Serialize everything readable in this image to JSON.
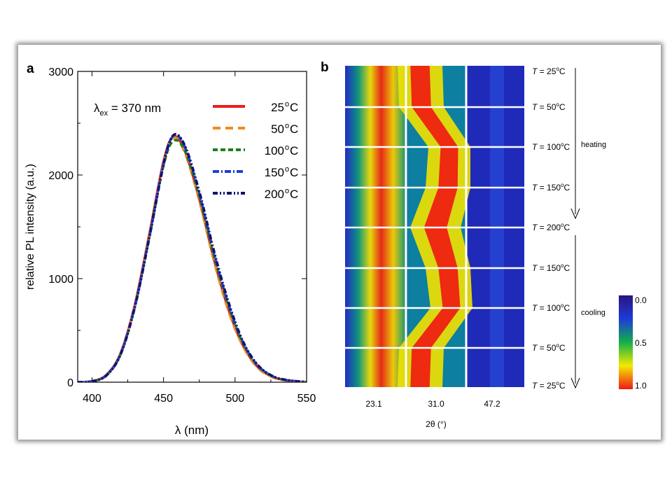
{
  "panel_a": {
    "label": "a",
    "annotation": {
      "symbol": "λ",
      "subscript": "ex",
      "rest": " = 370 nm"
    },
    "ylabel": "relative PL intensity (a.u.)",
    "xlabel": "λ (nm)",
    "x_ticks": [
      "400",
      "450",
      "500",
      "550"
    ],
    "y_ticks": [
      "0",
      "1000",
      "2000",
      "3000"
    ],
    "legend": [
      {
        "label": "25",
        "unit": "C",
        "color": "#e8211e"
      },
      {
        "label": "50",
        "unit": "C",
        "color": "#f28a22"
      },
      {
        "label": "100",
        "unit": "C",
        "color": "#1a7f1a"
      },
      {
        "label": "150",
        "unit": "C",
        "color": "#1e3fd6"
      },
      {
        "label": "200",
        "unit": "C",
        "color": "#10156b"
      }
    ]
  },
  "panel_b": {
    "label": "b",
    "x_ticks": [
      "23.1",
      "31.0",
      "47.2"
    ],
    "xlabel": "2θ (°)",
    "temperature_rows": [
      {
        "t": "T =",
        "value": "25",
        "unit": "C"
      },
      {
        "t": "T =",
        "value": "50",
        "unit": "C"
      },
      {
        "t": "T =",
        "value": "100",
        "unit": "C"
      },
      {
        "t": "T =",
        "value": "150",
        "unit": "C"
      },
      {
        "t": "T =",
        "value": "200",
        "unit": "C"
      },
      {
        "t": "T =",
        "value": "150",
        "unit": "C"
      },
      {
        "t": "T =",
        "value": "100",
        "unit": "C"
      },
      {
        "t": "T =",
        "value": "50",
        "unit": "C"
      },
      {
        "t": "T =",
        "value": "25",
        "unit": "C"
      }
    ],
    "heating_label": "heating",
    "cooling_label": "cooling",
    "colorbar_ticks": [
      "0.0",
      "0.5",
      "1.0"
    ]
  },
  "chart_data": [
    {
      "type": "line",
      "xlabel": "λ (nm)",
      "ylabel": "relative PL intensity (a.u.)",
      "xlim": [
        390,
        550
      ],
      "ylim": [
        0,
        3000
      ],
      "peak_wavelength": 457,
      "x": [
        390,
        400,
        410,
        420,
        430,
        440,
        450,
        457,
        465,
        475,
        485,
        495,
        505,
        515,
        525,
        535,
        550
      ],
      "series": [
        {
          "name": "25°C",
          "values": [
            0,
            10,
            70,
            280,
            750,
            1420,
            2130,
            2370,
            2230,
            1770,
            1200,
            720,
            370,
            160,
            60,
            20,
            0
          ]
        },
        {
          "name": "50°C",
          "values": [
            0,
            10,
            68,
            275,
            740,
            1400,
            2110,
            2360,
            2210,
            1750,
            1180,
            700,
            360,
            150,
            55,
            18,
            0
          ]
        },
        {
          "name": "100°C",
          "values": [
            0,
            8,
            65,
            270,
            730,
            1390,
            2090,
            2330,
            2230,
            1790,
            1230,
            750,
            390,
            170,
            65,
            22,
            0
          ]
        },
        {
          "name": "150°C",
          "values": [
            0,
            9,
            66,
            272,
            735,
            1400,
            2110,
            2380,
            2270,
            1820,
            1260,
            770,
            400,
            175,
            66,
            22,
            0
          ]
        },
        {
          "name": "200°C",
          "values": [
            0,
            8,
            64,
            268,
            728,
            1390,
            2100,
            2385,
            2280,
            1840,
            1280,
            790,
            410,
            180,
            68,
            24,
            0
          ]
        }
      ]
    },
    {
      "type": "heatmap",
      "xlabel": "2θ (°)",
      "x_ticks": [
        23.1,
        31.0,
        47.2
      ],
      "colorbar_range": [
        0.0,
        1.0
      ],
      "rows": [
        "25°C",
        "50°C",
        "100°C",
        "150°C",
        "200°C",
        "150°C",
        "100°C",
        "50°C",
        "25°C"
      ],
      "segments": [
        "heating",
        "cooling"
      ]
    }
  ]
}
